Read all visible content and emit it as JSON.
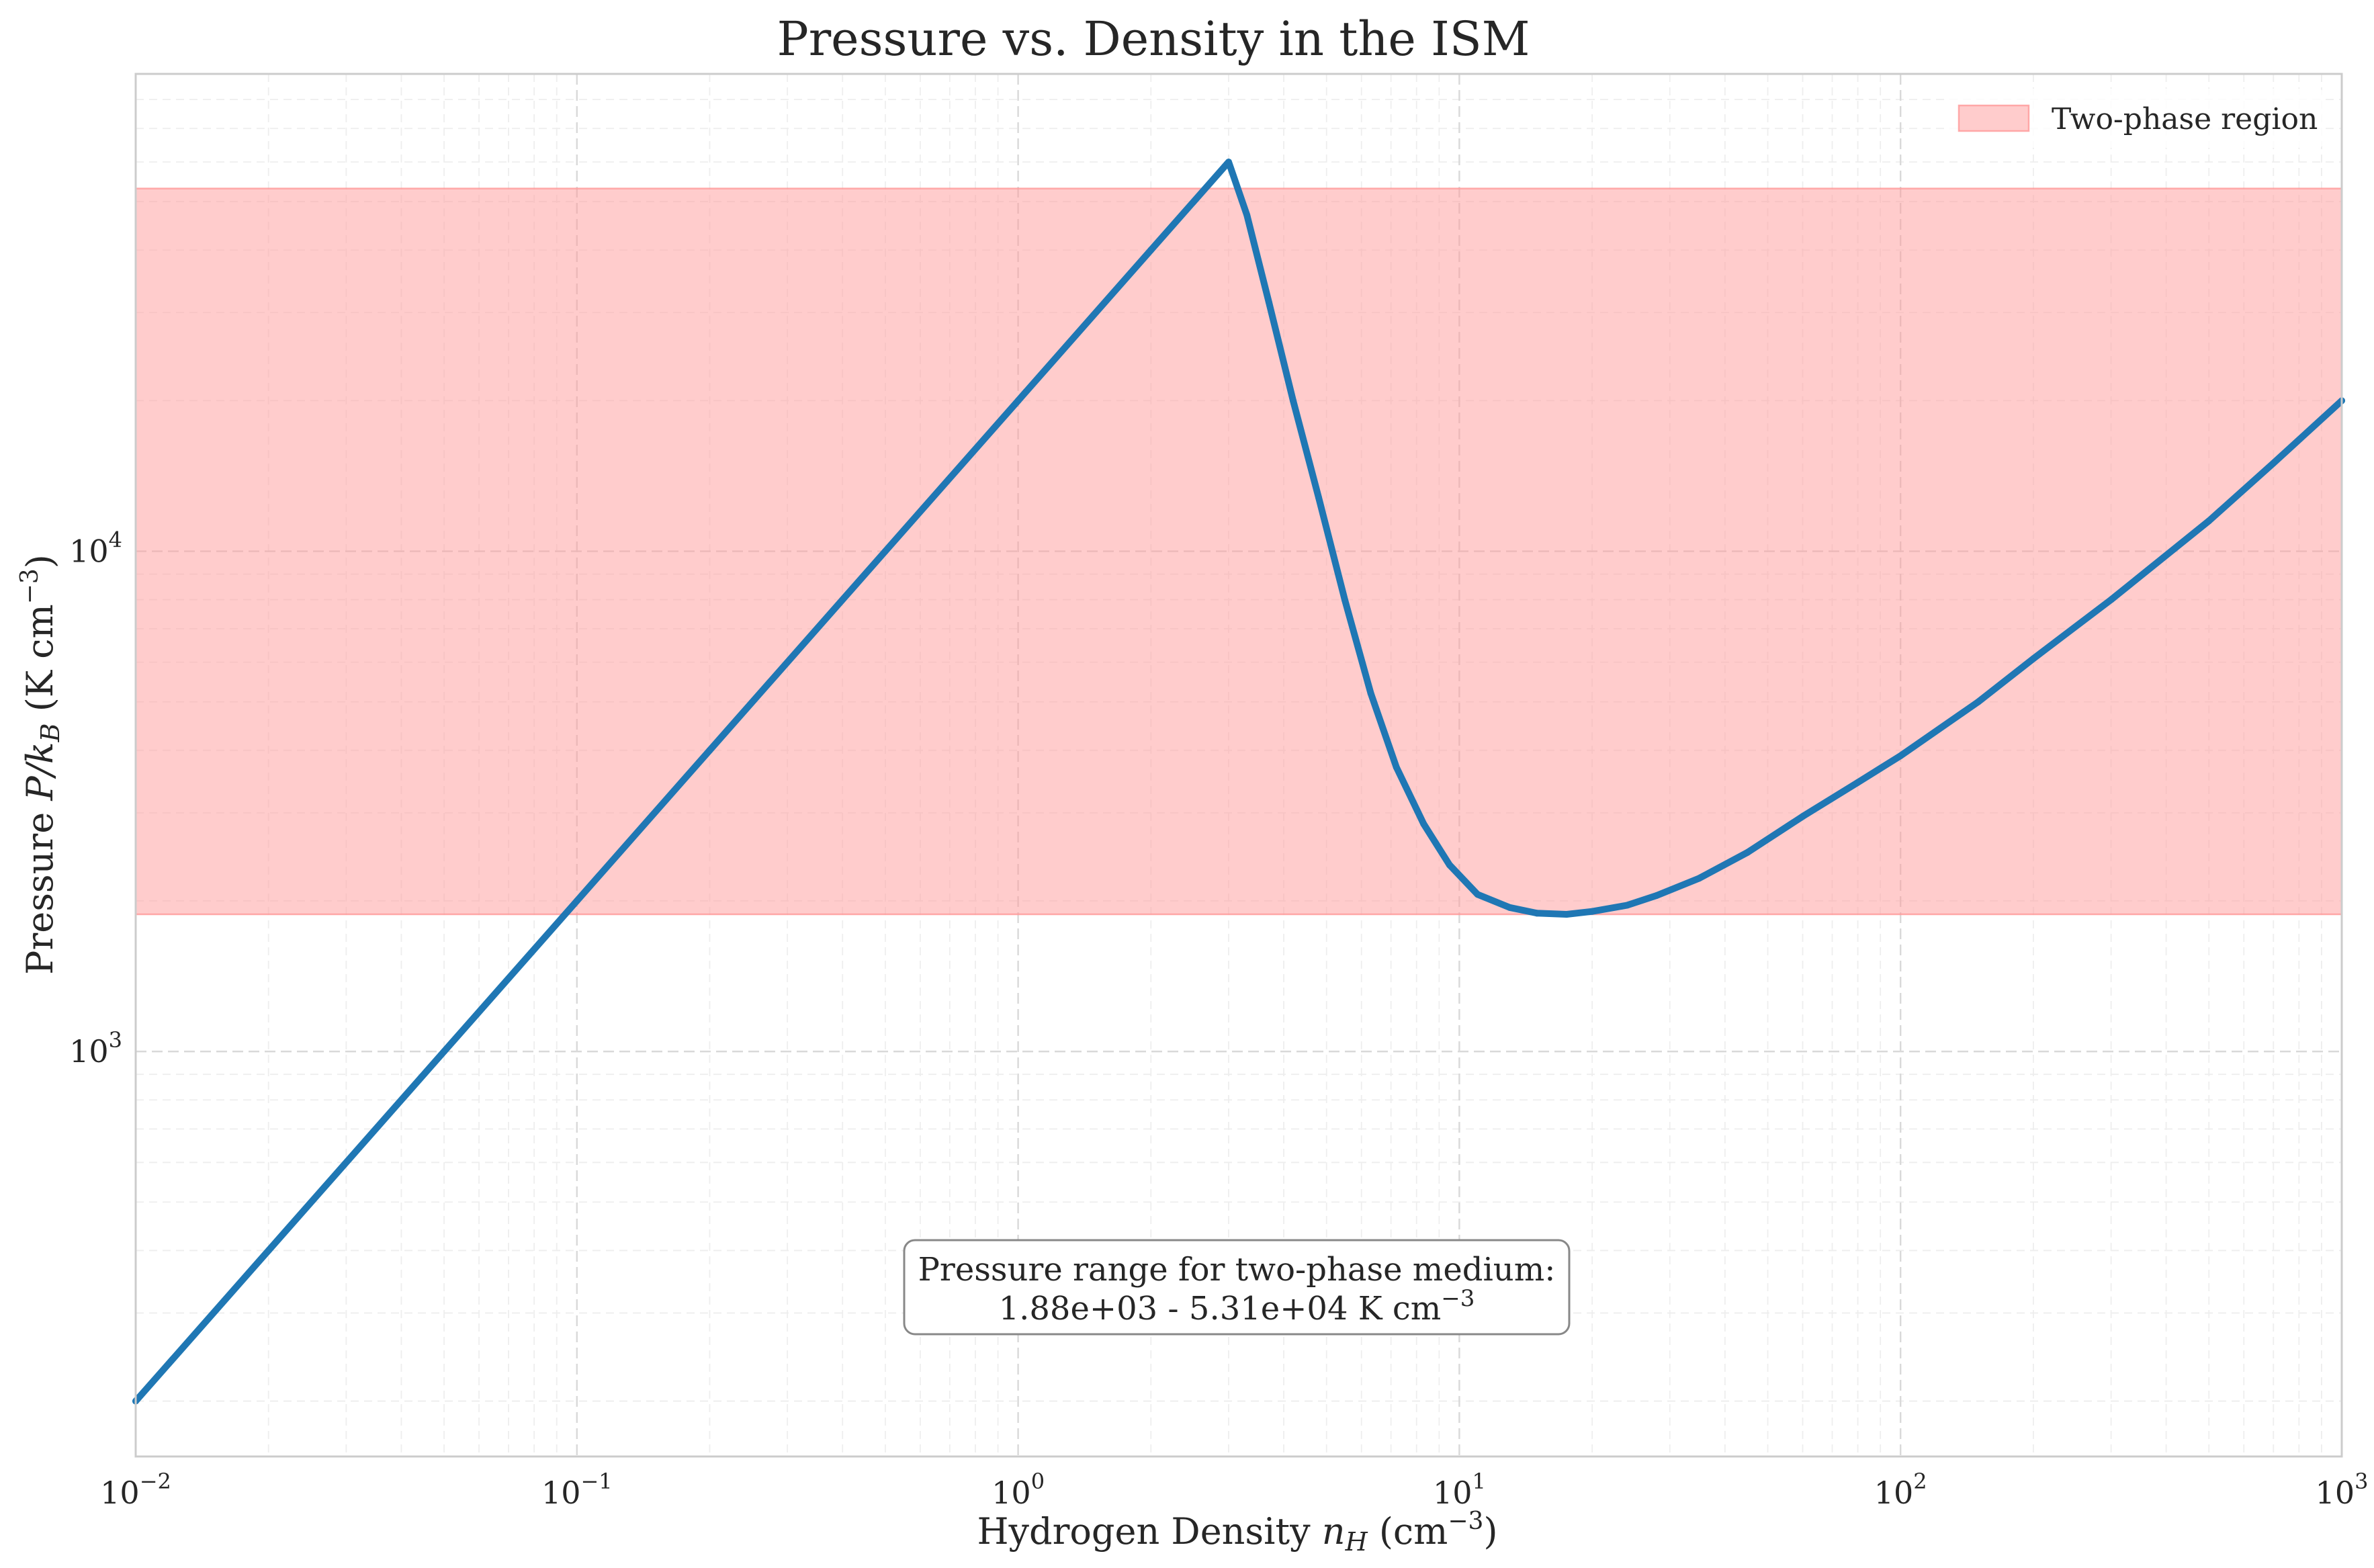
{
  "chart_data": {
    "type": "line",
    "title": "Pressure vs. Density in the ISM",
    "xlabel": "Hydrogen Density n_H (cm^-3)",
    "xlabel_parts": {
      "pre": "Hydrogen Density ",
      "var": "n",
      "var_sub": "H",
      "mid": " (cm",
      "sup": "−3",
      "post": ")"
    },
    "ylabel": "Pressure P/k_B (K cm^-3)",
    "ylabel_parts": {
      "pre": "Pressure ",
      "var": "P/k",
      "var_sub": "B",
      "mid": " (K cm",
      "sup": "−3",
      "post": ")"
    },
    "xscale": "log",
    "yscale": "log",
    "xlim": [
      0.01,
      1000
    ],
    "ylim": [
      155,
      90000
    ],
    "x_ticks": [
      {
        "base": "10",
        "exp": "−2",
        "value": 0.01
      },
      {
        "base": "10",
        "exp": "−1",
        "value": 0.1
      },
      {
        "base": "10",
        "exp": "0",
        "value": 1
      },
      {
        "base": "10",
        "exp": "1",
        "value": 10
      },
      {
        "base": "10",
        "exp": "2",
        "value": 100
      },
      {
        "base": "10",
        "exp": "3",
        "value": 1000
      }
    ],
    "y_ticks": [
      {
        "base": "10",
        "exp": "3",
        "value": 1000
      },
      {
        "base": "10",
        "exp": "4",
        "value": 10000
      }
    ],
    "grid": true,
    "series": [
      {
        "color": "#1f77b4",
        "x": [
          0.01,
          0.02,
          0.05,
          0.1,
          0.2,
          0.5,
          1,
          2,
          3.0,
          3.3,
          3.7,
          4.2,
          4.8,
          5.5,
          6.3,
          7.2,
          8.3,
          9.5,
          11,
          13,
          15,
          17.5,
          20,
          24,
          28,
          35,
          45,
          60,
          80,
          100,
          150,
          200,
          300,
          500,
          700,
          1000
        ],
        "y": [
          200,
          400,
          1000,
          2000,
          4000,
          10000,
          20000,
          40000,
          60000,
          47000,
          31500,
          20000,
          12800,
          8000,
          5200,
          3700,
          2850,
          2360,
          2060,
          1940,
          1890,
          1880,
          1905,
          1960,
          2050,
          2220,
          2500,
          2950,
          3450,
          3900,
          5000,
          6100,
          8000,
          11500,
          15000,
          20000
        ]
      }
    ],
    "shaded_region": {
      "label": "Two-phase region",
      "ymin": 1880,
      "ymax": 53100,
      "color": "#ff9999"
    },
    "legend": {
      "location": "upper right",
      "entries": [
        "Two-phase region"
      ]
    },
    "annotation": {
      "line1": "Pressure range for two-phase medium:",
      "line2_value": "1.88e+03 - 5.31e+04 K cm",
      "line2_sup": "−3",
      "location": "bottom center"
    }
  }
}
